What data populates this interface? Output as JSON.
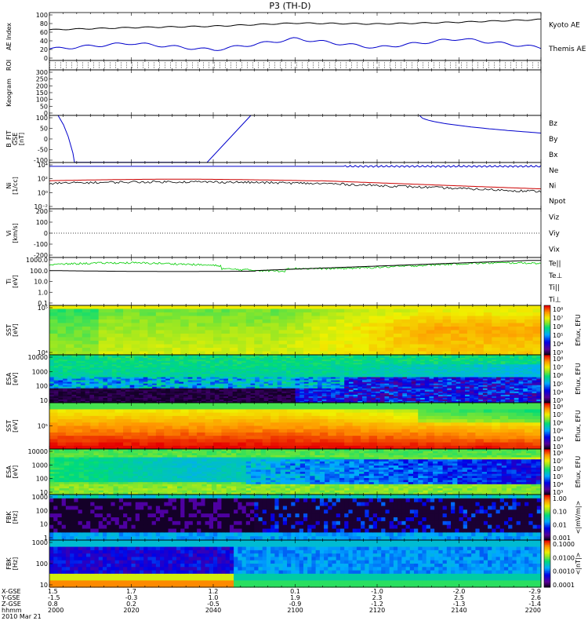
{
  "title": "P3 (TH-D)",
  "footer": {
    "row_labels": [
      "X-GSE",
      "Y-GSE",
      "Z-GSE",
      "hhmm",
      "2010 Mar 21"
    ],
    "columns": [
      {
        "x": "1.5",
        "y": "-1.5",
        "z": "0.8",
        "t": "2000"
      },
      {
        "x": "1.7",
        "y": "-0.3",
        "z": "0.2",
        "t": "2020"
      },
      {
        "x": "1.2",
        "y": "1.0",
        "z": "-0.5",
        "t": "2040"
      },
      {
        "x": "0.1",
        "y": "1.9",
        "z": "-0.9",
        "t": "2100"
      },
      {
        "x": "-1.0",
        "y": "2.3",
        "z": "-1.2",
        "t": "2120"
      },
      {
        "x": "-2.0",
        "y": "2.5",
        "z": "-1.3",
        "t": "2140"
      },
      {
        "x": "-2.9",
        "y": "2.6",
        "z": "-1.4",
        "t": "2200"
      }
    ]
  },
  "panels": [
    {
      "key": "ae",
      "ylabel": [
        "AE Index"
      ],
      "ticks": [
        "100",
        "80",
        "60",
        "40",
        "20",
        "0"
      ],
      "legend": [
        {
          "text": "Kyoto AE",
          "color": "#0000cc"
        },
        {
          "text": "Themis AE",
          "color": "#000000"
        }
      ]
    },
    {
      "key": "roi",
      "ylabel": [
        "ROI"
      ],
      "ticks": [],
      "legend": []
    },
    {
      "key": "keo",
      "ylabel": [
        "Keogram"
      ],
      "ticks": [
        "300",
        "250",
        "200",
        "150",
        "100",
        "50",
        "0"
      ],
      "legend": []
    },
    {
      "key": "bfit",
      "ylabel": [
        "B_FIT",
        "GSE",
        "[nT]"
      ],
      "ticks": [
        "100",
        "50",
        "0",
        "-50",
        "-100"
      ],
      "legend": [
        {
          "text": "Bz",
          "color": "#cc0000"
        },
        {
          "text": "By",
          "color": "#00aa00"
        },
        {
          "text": "Bx",
          "color": "#0000cc"
        }
      ]
    },
    {
      "key": "ni",
      "ylabel": [
        "Ni",
        "[1/cc]"
      ],
      "ticks": [
        "10⁴",
        "10²",
        "10⁰",
        "10⁻²"
      ],
      "legend": [
        {
          "text": "Ne",
          "color": "#cc0000"
        },
        {
          "text": "Ni",
          "color": "#000000"
        },
        {
          "text": "Npot",
          "color": "#0000cc"
        }
      ]
    },
    {
      "key": "vi",
      "ylabel": [
        "Vi",
        "[km/s]"
      ],
      "ticks": [
        "200",
        "100",
        "0",
        "-100",
        "-200"
      ],
      "legend": [
        {
          "text": "Viz",
          "color": "#cc0000"
        },
        {
          "text": "Viy",
          "color": "#00aa00"
        },
        {
          "text": "Vix",
          "color": "#0000cc"
        }
      ]
    },
    {
      "key": "ti",
      "ylabel": [
        "Ti",
        "[eV]"
      ],
      "ticks": [
        "1000.0",
        "100.0",
        "10.0",
        "1.0",
        "0.1"
      ],
      "legend": [
        {
          "text": "Te||",
          "color": "#000000"
        },
        {
          "text": "Te⊥",
          "color": "#cc0000"
        },
        {
          "text": "Ti||",
          "color": "#00aa00"
        },
        {
          "text": "Ti⊥",
          "color": "#0000cc"
        }
      ]
    },
    {
      "key": "sst_e",
      "ylabel": [
        "SST",
        "[eV]"
      ],
      "ticks": [
        "10⁵",
        "10⁴"
      ],
      "cbar": [
        "10⁸",
        "10⁷",
        "10⁶",
        "10⁵",
        "10⁴",
        "10³"
      ],
      "cbar_label": "Eflux, EFU",
      "legend": []
    },
    {
      "key": "esa_e",
      "ylabel": [
        "ESA",
        "[eV]"
      ],
      "ticks": [
        "10000",
        "1000",
        "100",
        "10"
      ],
      "cbar": [
        "10⁸",
        "10⁷",
        "10⁶",
        "10⁵",
        "10⁴",
        "10³"
      ],
      "cbar_label": "Eflux, EFU",
      "legend": []
    },
    {
      "key": "sst_i",
      "ylabel": [
        "SST",
        "[eV]"
      ],
      "ticks": [
        "10⁵"
      ],
      "cbar": [
        "10⁸",
        "10⁷",
        "10⁶",
        "10⁵",
        "10⁴",
        "10³"
      ],
      "cbar_label": "Eflux, EFU",
      "legend": []
    },
    {
      "key": "esa_i",
      "ylabel": [
        "ESA",
        "[eV]"
      ],
      "ticks": [
        "10000",
        "1000",
        "100",
        "10"
      ],
      "cbar": [
        "10⁸",
        "10⁷",
        "10⁶",
        "10⁵",
        "10⁴",
        "10³"
      ],
      "cbar_label": "Eflux, EFU",
      "legend": []
    },
    {
      "key": "fbk1",
      "ylabel": [
        "FBK",
        "[Hz]"
      ],
      "ticks": [
        "1000",
        "100",
        "10",
        "1"
      ],
      "cbar": [
        "1.00",
        "0.10",
        "0.01",
        "0.001"
      ],
      "cbar_label": "<|mV/m|>",
      "legend": []
    },
    {
      "key": "fbk2",
      "ylabel": [
        "FBK",
        "[Hz]"
      ],
      "ticks": [
        "1000",
        "100",
        "10"
      ],
      "cbar": [
        "0.1000",
        "0.0100",
        "0.0010",
        "0.0001"
      ],
      "cbar_label": "<|nT|>",
      "legend": []
    }
  ],
  "colors": {
    "blue": "#0000cc",
    "red": "#cc0000",
    "green": "#00cc00",
    "black": "#000000"
  },
  "chart_data": {
    "type": "line",
    "title": "P3 (TH-D)",
    "x": [
      "2000",
      "2020",
      "2040",
      "2100",
      "2120",
      "2140",
      "2200"
    ],
    "xlabel": "hhmm",
    "series": [
      {
        "name": "Kyoto AE",
        "values": [
          65,
          70,
          73,
          80,
          78,
          82,
          88
        ]
      },
      {
        "name": "Themis AE",
        "values": [
          22,
          35,
          20,
          45,
          25,
          45,
          25
        ]
      }
    ],
    "ylim": [
      0,
      100
    ]
  }
}
